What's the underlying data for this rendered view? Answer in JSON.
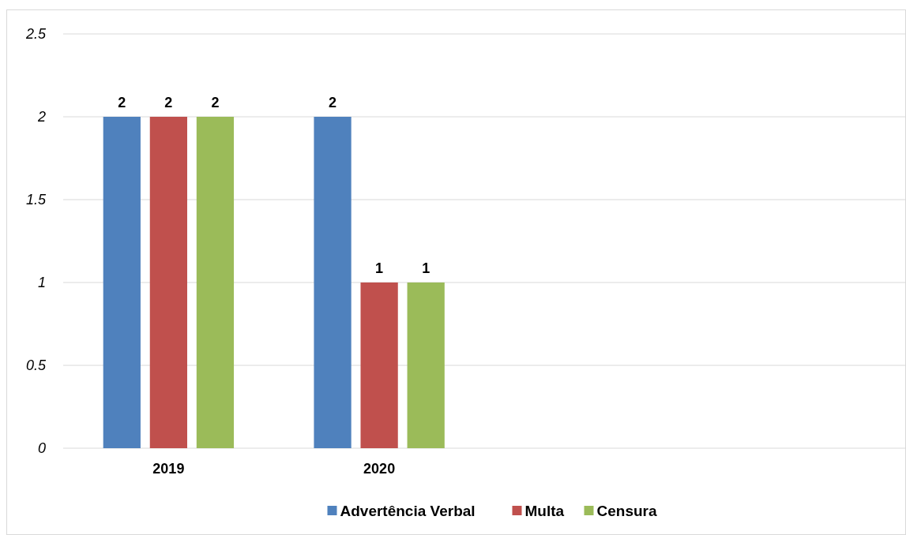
{
  "chart_data": {
    "type": "bar",
    "categories": [
      "2019",
      "2020",
      null,
      null
    ],
    "series": [
      {
        "name": "Advertência Verbal",
        "color": "#4f81bd",
        "values": [
          2,
          2,
          null,
          null
        ]
      },
      {
        "name": "Multa",
        "color": "#c0504d",
        "values": [
          2,
          1,
          null,
          null
        ]
      },
      {
        "name": "Censura",
        "color": "#9bbb59",
        "values": [
          2,
          1,
          null,
          null
        ]
      }
    ],
    "ylim": [
      0,
      2.5
    ],
    "yticks": [
      0,
      0.5,
      1,
      1.5,
      2,
      2.5
    ],
    "grid": "y",
    "legend": "bottom",
    "data_labels": true
  }
}
